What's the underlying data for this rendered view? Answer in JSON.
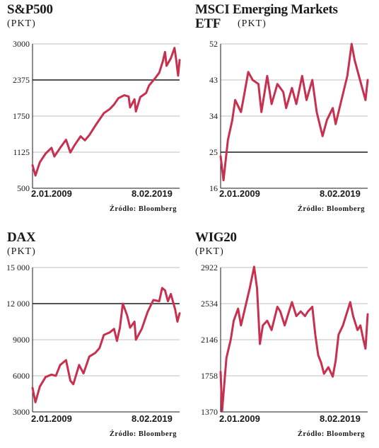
{
  "colors": {
    "line": "#c8304f",
    "grid": "#bfbfbf",
    "axis": "#1a1a1a",
    "highlight_grid": "#1a1a1a"
  },
  "charts": [
    {
      "id": "sp500",
      "title": "S&P500",
      "unit": "(PKT)",
      "date_start": "2.01.2009",
      "date_end": "8.02.2019",
      "source": "Źródło: Bloomberg"
    },
    {
      "id": "msci",
      "title": "MSCI Emerging Markets\nETF",
      "unit": "(PKT)",
      "date_start": "2.01.2009",
      "date_end": "8.02.2019",
      "source": "Źródło: Bloomberg"
    },
    {
      "id": "dax",
      "title": "DAX",
      "unit": "(PKT)",
      "date_start": "2.01.2009",
      "date_end": "8.02.2019",
      "source": "Źródło: Bloomberg"
    },
    {
      "id": "wig20",
      "title": "WIG20",
      "unit": "(PKT)",
      "date_start": "2.01.2009",
      "date_end": "8.02.2019",
      "source": "Źródło: Bloomberg"
    }
  ],
  "chart_data": [
    {
      "type": "line",
      "title": "S&P500",
      "ylabel": "(PKT)",
      "x_range": [
        "2.01.2009",
        "8.02.2019"
      ],
      "y_ticks": [
        "500",
        "1125",
        "1750",
        "2375",
        "3000"
      ],
      "ylim": [
        500,
        3000
      ],
      "highlight_tick": 2375,
      "points": [
        [
          2009.0,
          900
        ],
        [
          2009.2,
          720
        ],
        [
          2009.5,
          950
        ],
        [
          2009.9,
          1100
        ],
        [
          2010.3,
          1200
        ],
        [
          2010.5,
          1050
        ],
        [
          2010.9,
          1200
        ],
        [
          2011.3,
          1340
        ],
        [
          2011.6,
          1120
        ],
        [
          2011.9,
          1250
        ],
        [
          2012.3,
          1400
        ],
        [
          2012.6,
          1330
        ],
        [
          2012.9,
          1420
        ],
        [
          2013.3,
          1580
        ],
        [
          2013.6,
          1690
        ],
        [
          2013.9,
          1800
        ],
        [
          2014.3,
          1870
        ],
        [
          2014.6,
          1950
        ],
        [
          2014.9,
          2060
        ],
        [
          2015.3,
          2110
        ],
        [
          2015.6,
          2090
        ],
        [
          2015.7,
          1900
        ],
        [
          2016.0,
          2040
        ],
        [
          2016.1,
          1830
        ],
        [
          2016.4,
          2080
        ],
        [
          2016.8,
          2150
        ],
        [
          2017.0,
          2280
        ],
        [
          2017.4,
          2400
        ],
        [
          2017.7,
          2500
        ],
        [
          2017.95,
          2700
        ],
        [
          2018.1,
          2860
        ],
        [
          2018.2,
          2620
        ],
        [
          2018.5,
          2750
        ],
        [
          2018.75,
          2930
        ],
        [
          2018.85,
          2750
        ],
        [
          2019.0,
          2450
        ],
        [
          2019.1,
          2720
        ]
      ]
    },
    {
      "type": "line",
      "title": "MSCI Emerging Markets ETF",
      "ylabel": "(PKT)",
      "x_range": [
        "2.01.2009",
        "8.02.2019"
      ],
      "y_ticks": [
        "16",
        "25",
        "34",
        "43",
        "52"
      ],
      "ylim": [
        16,
        52
      ],
      "highlight_tick": 25,
      "points": [
        [
          2009.0,
          24
        ],
        [
          2009.2,
          18
        ],
        [
          2009.5,
          28
        ],
        [
          2009.8,
          33
        ],
        [
          2010.0,
          38
        ],
        [
          2010.4,
          35
        ],
        [
          2010.6,
          39
        ],
        [
          2010.9,
          45
        ],
        [
          2011.2,
          43
        ],
        [
          2011.6,
          42
        ],
        [
          2011.8,
          35
        ],
        [
          2012.2,
          44
        ],
        [
          2012.5,
          37
        ],
        [
          2012.9,
          42
        ],
        [
          2013.3,
          40
        ],
        [
          2013.5,
          36
        ],
        [
          2013.9,
          41
        ],
        [
          2014.2,
          37
        ],
        [
          2014.6,
          44
        ],
        [
          2014.9,
          38
        ],
        [
          2015.3,
          43
        ],
        [
          2015.6,
          35
        ],
        [
          2016.0,
          29
        ],
        [
          2016.3,
          33
        ],
        [
          2016.7,
          36
        ],
        [
          2016.9,
          32
        ],
        [
          2017.3,
          38
        ],
        [
          2017.7,
          44
        ],
        [
          2018.0,
          52
        ],
        [
          2018.2,
          48
        ],
        [
          2018.5,
          44
        ],
        [
          2018.8,
          40
        ],
        [
          2018.95,
          38
        ],
        [
          2019.1,
          43
        ]
      ]
    },
    {
      "type": "line",
      "title": "DAX",
      "ylabel": "(PKT)",
      "x_range": [
        "2.01.2009",
        "8.02.2019"
      ],
      "y_ticks": [
        "3000",
        "6000",
        "9000",
        "12 000",
        "15 000"
      ],
      "ylim": [
        3000,
        15000
      ],
      "highlight_tick": 12000,
      "points": [
        [
          2009.0,
          5000
        ],
        [
          2009.2,
          3800
        ],
        [
          2009.5,
          5100
        ],
        [
          2009.9,
          5900
        ],
        [
          2010.3,
          6100
        ],
        [
          2010.6,
          6000
        ],
        [
          2010.9,
          6900
        ],
        [
          2011.3,
          7300
        ],
        [
          2011.6,
          5600
        ],
        [
          2011.8,
          5300
        ],
        [
          2012.2,
          6900
        ],
        [
          2012.5,
          6200
        ],
        [
          2012.9,
          7600
        ],
        [
          2013.3,
          7900
        ],
        [
          2013.6,
          8300
        ],
        [
          2013.9,
          9400
        ],
        [
          2014.3,
          9600
        ],
        [
          2014.6,
          9900
        ],
        [
          2014.8,
          8900
        ],
        [
          2015.0,
          10000
        ],
        [
          2015.2,
          12000
        ],
        [
          2015.5,
          11000
        ],
        [
          2015.7,
          10000
        ],
        [
          2016.0,
          10500
        ],
        [
          2016.1,
          9000
        ],
        [
          2016.5,
          9900
        ],
        [
          2016.9,
          11300
        ],
        [
          2017.3,
          12300
        ],
        [
          2017.7,
          12200
        ],
        [
          2017.9,
          13300
        ],
        [
          2018.1,
          13100
        ],
        [
          2018.3,
          12200
        ],
        [
          2018.5,
          12800
        ],
        [
          2018.8,
          11500
        ],
        [
          2018.95,
          10500
        ],
        [
          2019.1,
          11200
        ]
      ]
    },
    {
      "type": "line",
      "title": "WIG20",
      "ylabel": "(PKT)",
      "x_range": [
        "2.01.2009",
        "8.02.2019"
      ],
      "y_ticks": [
        "1370",
        "1758",
        "2146",
        "2534",
        "2922"
      ],
      "ylim": [
        1370,
        2922
      ],
      "highlight_tick": null,
      "points": [
        [
          2009.0,
          1800
        ],
        [
          2009.1,
          1380
        ],
        [
          2009.4,
          1950
        ],
        [
          2009.7,
          2150
        ],
        [
          2009.9,
          2350
        ],
        [
          2010.2,
          2480
        ],
        [
          2010.4,
          2300
        ],
        [
          2010.7,
          2500
        ],
        [
          2011.0,
          2700
        ],
        [
          2011.3,
          2930
        ],
        [
          2011.5,
          2700
        ],
        [
          2011.7,
          2100
        ],
        [
          2011.9,
          2300
        ],
        [
          2012.2,
          2350
        ],
        [
          2012.5,
          2250
        ],
        [
          2012.9,
          2500
        ],
        [
          2013.1,
          2450
        ],
        [
          2013.4,
          2300
        ],
        [
          2013.6,
          2400
        ],
        [
          2013.9,
          2550
        ],
        [
          2014.2,
          2400
        ],
        [
          2014.5,
          2450
        ],
        [
          2014.8,
          2400
        ],
        [
          2015.0,
          2450
        ],
        [
          2015.3,
          2500
        ],
        [
          2015.5,
          2200
        ],
        [
          2015.7,
          1980
        ],
        [
          2015.9,
          1900
        ],
        [
          2016.1,
          1780
        ],
        [
          2016.4,
          1850
        ],
        [
          2016.7,
          1750
        ],
        [
          2016.9,
          1920
        ],
        [
          2017.1,
          2200
        ],
        [
          2017.4,
          2300
        ],
        [
          2017.7,
          2450
        ],
        [
          2017.9,
          2550
        ],
        [
          2018.1,
          2400
        ],
        [
          2018.4,
          2250
        ],
        [
          2018.6,
          2300
        ],
        [
          2018.8,
          2150
        ],
        [
          2018.95,
          2050
        ],
        [
          2019.1,
          2420
        ]
      ]
    }
  ]
}
